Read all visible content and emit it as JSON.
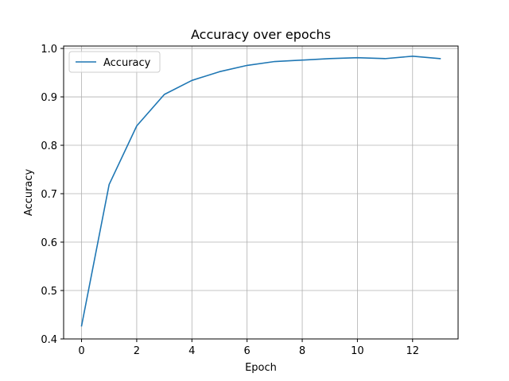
{
  "chart_data": {
    "type": "line",
    "title": "Accuracy over epochs",
    "xlabel": "Epoch",
    "ylabel": "Accuracy",
    "xlim": [
      -0.65,
      13.65
    ],
    "ylim": [
      0.4,
      1.005
    ],
    "xticks": [
      0,
      2,
      4,
      6,
      8,
      10,
      12
    ],
    "yticks": [
      0.4,
      0.5,
      0.6,
      0.7,
      0.8,
      0.9,
      1.0
    ],
    "grid": true,
    "legend_position": "upper-left",
    "x": [
      0,
      1,
      2,
      3,
      4,
      5,
      6,
      7,
      8,
      9,
      10,
      11,
      12,
      13
    ],
    "series": [
      {
        "name": "Accuracy",
        "color": "#1f77b4",
        "values": [
          0.427,
          0.719,
          0.84,
          0.905,
          0.934,
          0.952,
          0.965,
          0.973,
          0.976,
          0.979,
          0.981,
          0.979,
          0.984,
          0.979
        ]
      }
    ]
  }
}
